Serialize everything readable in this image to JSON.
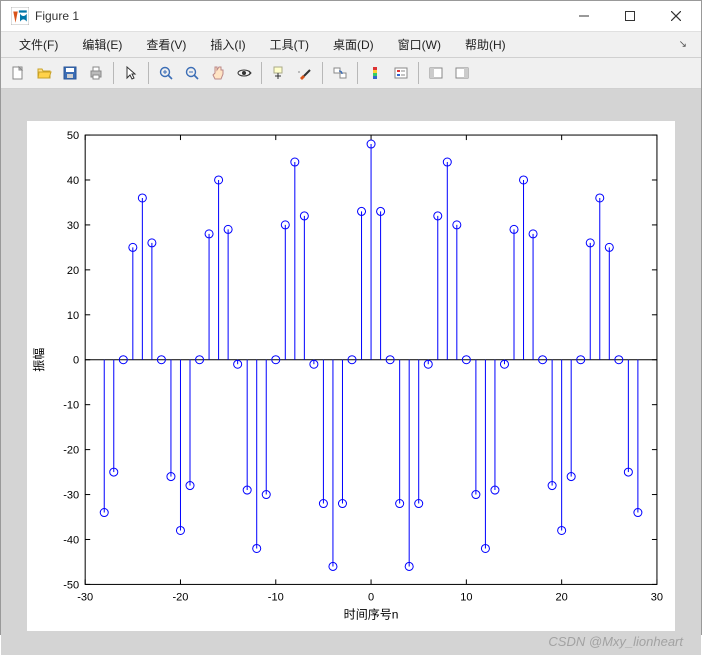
{
  "window": {
    "title": "Figure 1"
  },
  "menubar": {
    "items": [
      {
        "label": "文件(F)"
      },
      {
        "label": "编辑(E)"
      },
      {
        "label": "查看(V)"
      },
      {
        "label": "插入(I)"
      },
      {
        "label": "工具(T)"
      },
      {
        "label": "桌面(D)"
      },
      {
        "label": "窗口(W)"
      },
      {
        "label": "帮助(H)"
      }
    ]
  },
  "toolbar": {
    "groups": [
      [
        "new-file",
        "open-file",
        "save",
        "print"
      ],
      [
        "pointer"
      ],
      [
        "zoom-in",
        "zoom-out",
        "pan",
        "rotate3d"
      ],
      [
        "data-cursor",
        "brush"
      ],
      [
        "link-plot"
      ],
      [
        "colorbar",
        "legend"
      ],
      [
        "hide-plot-tools",
        "show-plot-tools"
      ]
    ]
  },
  "chart": {
    "type": "stem",
    "xlabel": "时间序号n",
    "ylabel": "振幅",
    "xlim": [
      -30,
      30
    ],
    "ylim": [
      -50,
      50
    ],
    "xticks": [
      -30,
      -20,
      -10,
      0,
      10,
      20,
      30
    ],
    "yticks": [
      -50,
      -40,
      -30,
      -20,
      -10,
      0,
      10,
      20,
      30,
      40,
      50
    ],
    "background_color": "#ffffff",
    "figure_bg": "#d4d4d4",
    "stem_color": "#0000ff",
    "marker": "o",
    "marker_size": 4,
    "axis_color": "#000000",
    "label_fontsize": 12,
    "tick_fontsize": 11,
    "x": [
      -28,
      -27,
      -26,
      -25,
      -24,
      -23,
      -22,
      -21,
      -20,
      -19,
      -18,
      -17,
      -16,
      -15,
      -14,
      -13,
      -12,
      -11,
      -10,
      -9,
      -8,
      -7,
      -6,
      -5,
      -4,
      -3,
      -2,
      -1,
      0,
      1,
      2,
      3,
      4,
      5,
      6,
      7,
      8,
      9,
      10,
      11,
      12,
      13,
      14,
      15,
      16,
      17,
      18,
      19,
      20,
      21,
      22,
      23,
      24,
      25,
      26,
      27,
      28
    ],
    "y": [
      -34,
      -25,
      0,
      25,
      36,
      26,
      0,
      -26,
      -38,
      -28,
      0,
      28,
      40,
      29,
      -1,
      -29,
      -42,
      -30,
      0,
      30,
      44,
      32,
      -1,
      -32,
      -46,
      -32,
      0,
      33,
      48,
      33,
      0,
      -32,
      -46,
      -32,
      -1,
      32,
      44,
      30,
      0,
      -30,
      -42,
      -29,
      -1,
      29,
      40,
      28,
      0,
      -28,
      -38,
      -26,
      0,
      26,
      36,
      25,
      0,
      -25,
      -34
    ]
  },
  "watermark": "CSDN @Mxy_lionheart"
}
